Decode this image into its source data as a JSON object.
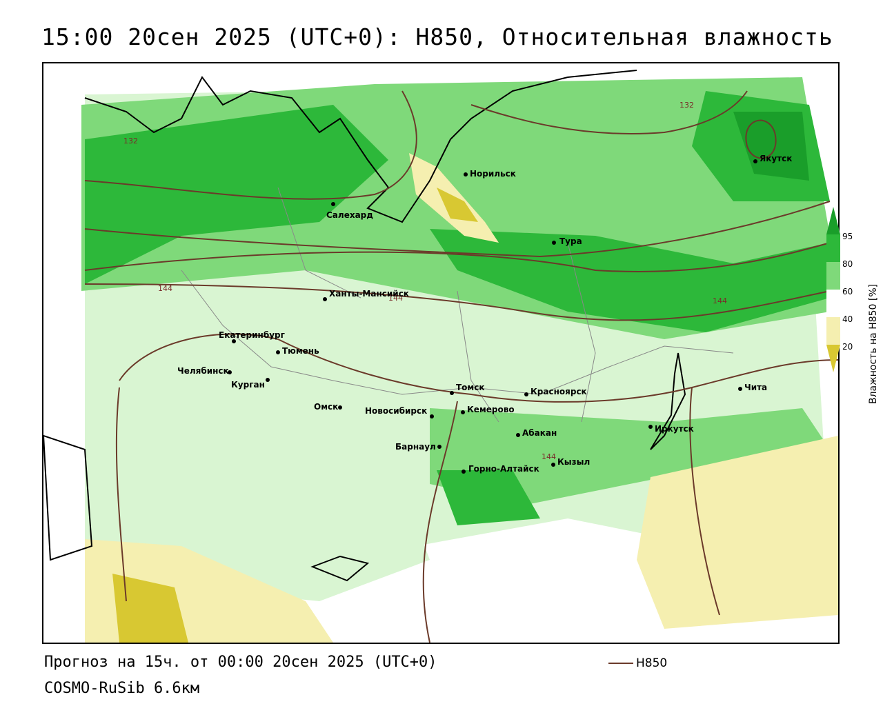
{
  "title": "15:00 20сен 2025 (UTC+0): H850, Относительная влажность",
  "footer": {
    "forecast": "Прогноз на 15ч. от 00:00 20сен 2025 (UTC+0)",
    "model": "COSMO-RuSib 6.6км"
  },
  "legend": {
    "label": "H850",
    "color": "#6b3a2a"
  },
  "colorbar": {
    "label": "Влажность на H850 [%]",
    "ticks": [
      "95",
      "80",
      "60",
      "40",
      "20"
    ],
    "colors": {
      "above95": "#1a9e2a",
      "c80_95": "#2db83a",
      "c60_80": "#7fd97a",
      "c40_60": "#d9f5d2",
      "c20_40": "#f5efb0",
      "below20": "#d8c832"
    }
  },
  "cities": [
    "Салехард",
    "Норильск",
    "Якутск",
    "Тура",
    "Ханты-Мансийск",
    "Екатеринбург",
    "Тюмень",
    "Челябинск",
    "Курган",
    "Омск",
    "Новосибирск",
    "Томск",
    "Кемерово",
    "Красноярск",
    "Абакан",
    "Барнаул",
    "Горно-Алтайск",
    "Кызыл",
    "Иркутск",
    "Чита"
  ],
  "contour_labels": [
    "132",
    "132",
    "144",
    "144",
    "144",
    "144"
  ]
}
